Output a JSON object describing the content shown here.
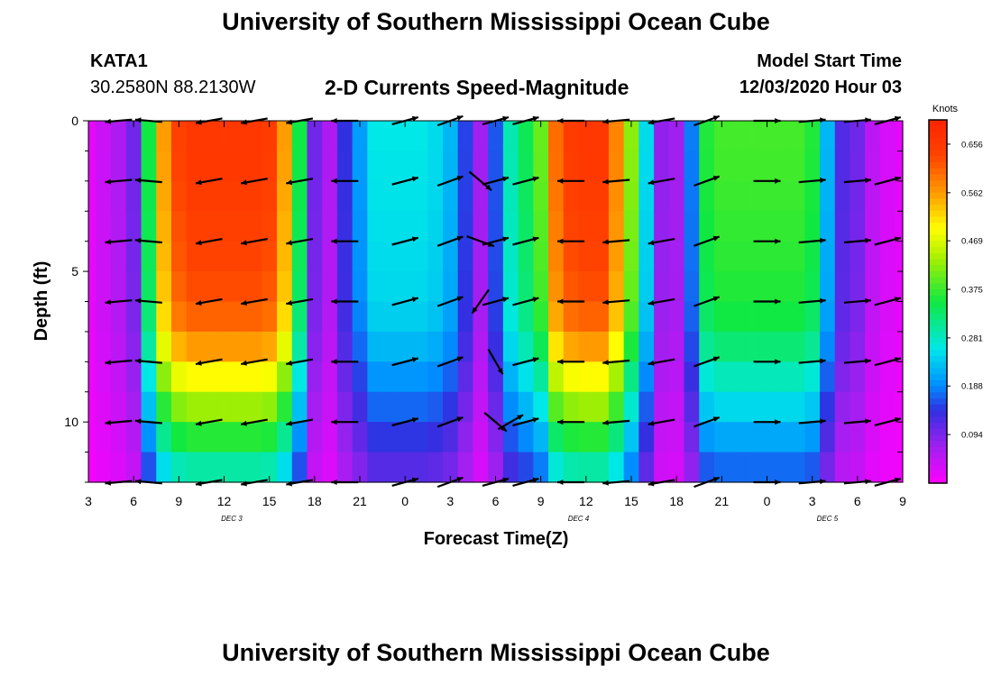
{
  "header": {
    "title": "University of Southern Mississippi Ocean Cube",
    "station_id": "KATA1",
    "station_coords": "30.2580N 88.2130W",
    "model_start_label": "Model Start Time",
    "model_start_value": "12/03/2020 Hour 03"
  },
  "footer": {
    "title": "University of Southern Mississippi Ocean Cube"
  },
  "chart_data": {
    "type": "heatmap",
    "title": "2-D Currents Speed-Magnitude",
    "xlabel": "Forecast Time(Z)",
    "ylabel": "Depth (ft)",
    "x_range_hours": [
      0,
      54
    ],
    "ylim": [
      0,
      12
    ],
    "x_tick_labels": [
      "3",
      "6",
      "9",
      "12",
      "15",
      "18",
      "21",
      "0",
      "3",
      "6",
      "9",
      "12",
      "15",
      "18",
      "21",
      "0",
      "3",
      "6",
      "9"
    ],
    "y_tick_labels": [
      "0",
      "5",
      "10"
    ],
    "date_labels": [
      {
        "text": "DEC 3",
        "hour": 9.5
      },
      {
        "text": "DEC 4",
        "hour": 32.5
      },
      {
        "text": "DEC 5",
        "hour": 49
      }
    ],
    "colorbar": {
      "title": "Knots",
      "min": 0.0,
      "max": 0.703,
      "tick_labels": [
        "0.656",
        "0.562",
        "0.469",
        "0.375",
        "0.281",
        "0.188",
        "0.094"
      ],
      "tick_values": [
        0.656,
        0.562,
        0.469,
        0.375,
        0.281,
        0.188,
        0.094
      ]
    },
    "speed_by_hour": [
      0.02,
      0.04,
      0.06,
      0.1,
      0.35,
      0.56,
      0.64,
      0.66,
      0.66,
      0.66,
      0.66,
      0.66,
      0.65,
      0.56,
      0.35,
      0.1,
      0.06,
      0.14,
      0.2,
      0.26,
      0.26,
      0.26,
      0.26,
      0.25,
      0.22,
      0.15,
      0.07,
      0.16,
      0.29,
      0.34,
      0.4,
      0.6,
      0.65,
      0.66,
      0.66,
      0.58,
      0.42,
      0.25,
      0.08,
      0.07,
      0.18,
      0.36,
      0.38,
      0.38,
      0.38,
      0.38,
      0.38,
      0.38,
      0.36,
      0.22,
      0.12,
      0.1,
      0.05,
      0.03,
      0.02
    ],
    "depth_factors": [
      1.0,
      1.0,
      0.99,
      0.98,
      0.97,
      0.96,
      0.94,
      0.9,
      0.8,
      0.7,
      0.6,
      0.5,
      0.4
    ],
    "vectors": {
      "depths": [
        0,
        2,
        4,
        6,
        8,
        10,
        12
      ],
      "hours": [
        2,
        4,
        8,
        11,
        14,
        17,
        21,
        24,
        27,
        29,
        32,
        35,
        38,
        41,
        45,
        48,
        51,
        53
      ],
      "directions_deg": [
        185,
        175,
        190,
        190,
        190,
        180,
        15,
        20,
        15,
        15,
        180,
        185,
        190,
        20,
        0,
        5,
        5,
        15
      ],
      "anomalies": [
        {
          "hour": 26,
          "depth": 6,
          "direction_deg": 235,
          "speed": 0.3
        },
        {
          "hour": 27,
          "depth": 8,
          "direction_deg": 300,
          "speed": 0.35
        },
        {
          "hour": 27,
          "depth": 10,
          "direction_deg": 320,
          "speed": 0.3
        },
        {
          "hour": 28,
          "depth": 10,
          "direction_deg": 30,
          "speed": 0.25
        },
        {
          "hour": 26,
          "depth": 2,
          "direction_deg": 320,
          "speed": 0.3
        },
        {
          "hour": 26,
          "depth": 4,
          "direction_deg": 340,
          "speed": 0.3
        }
      ]
    }
  }
}
